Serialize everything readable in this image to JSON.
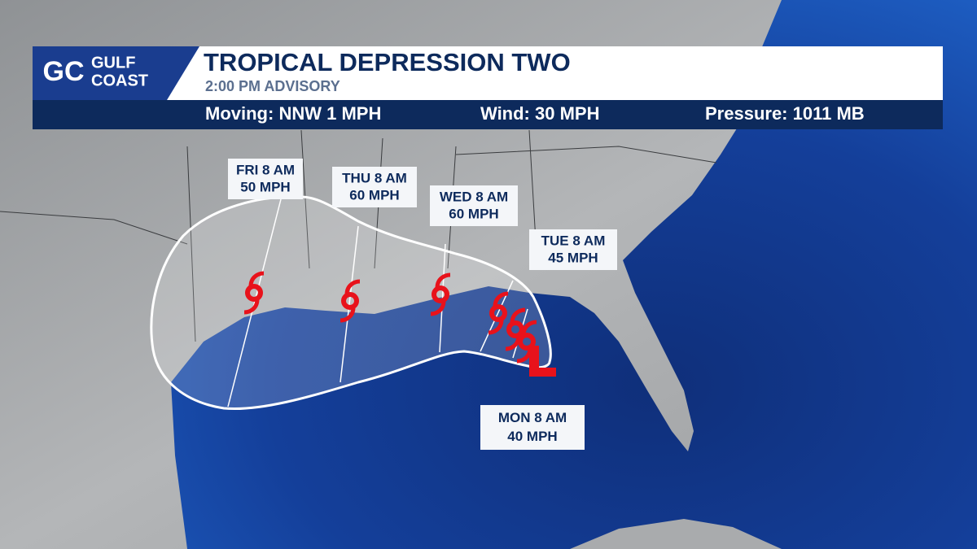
{
  "logo": {
    "mark": "GC",
    "line1": "GULF",
    "line2": "COAST"
  },
  "header": {
    "title": "TROPICAL DEPRESSION TWO",
    "subtitle": "2:00 PM ADVISORY"
  },
  "stats": [
    {
      "label": "Moving:",
      "value": "NNW 1 MPH"
    },
    {
      "label": "Wind:",
      "value": "30 MPH"
    },
    {
      "label": "Pressure:",
      "value": "1011 MB"
    }
  ],
  "forecast_points": [
    {
      "time": "FRI 8 AM",
      "wind": "50 MPH"
    },
    {
      "time": "THU 8 AM",
      "wind": "60 MPH"
    },
    {
      "time": "WED 8 AM",
      "wind": "60 MPH"
    },
    {
      "time": "TUE 8 AM",
      "wind": "45 MPH"
    },
    {
      "time": "MON 8 AM",
      "wind": "40 MPH"
    }
  ]
}
